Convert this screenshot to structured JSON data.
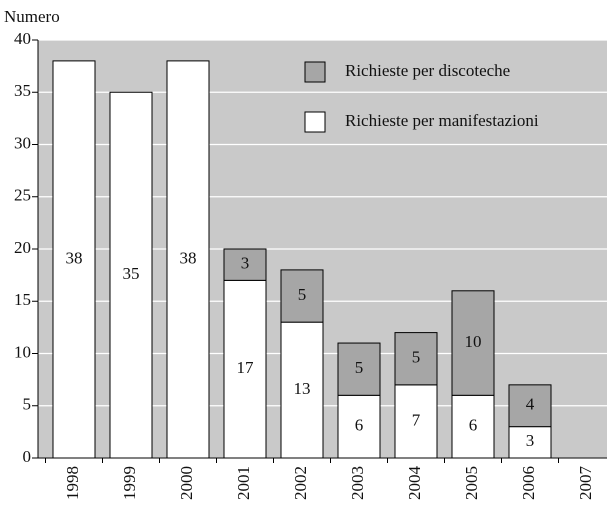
{
  "chart_data": {
    "type": "stacked-bar",
    "y_label": "Numero",
    "categories": [
      "1998",
      "1999",
      "2000",
      "2001",
      "2002",
      "2003",
      "2004",
      "2005",
      "2006",
      "2007"
    ],
    "series": [
      {
        "name": "Richieste per manifestazioni",
        "color": "#ffffff",
        "values": [
          38,
          35,
          38,
          17,
          13,
          6,
          7,
          6,
          3,
          null
        ]
      },
      {
        "name": "Richieste per discoteche",
        "color": "#a6a6a6",
        "values": [
          null,
          null,
          null,
          3,
          5,
          5,
          5,
          10,
          4,
          null
        ]
      }
    ],
    "ylim": [
      0,
      40
    ],
    "yticks": [
      0,
      5,
      10,
      15,
      20,
      25,
      30,
      35,
      40
    ],
    "grid": true,
    "legend": "top-right",
    "background": "#c9c9c9"
  }
}
